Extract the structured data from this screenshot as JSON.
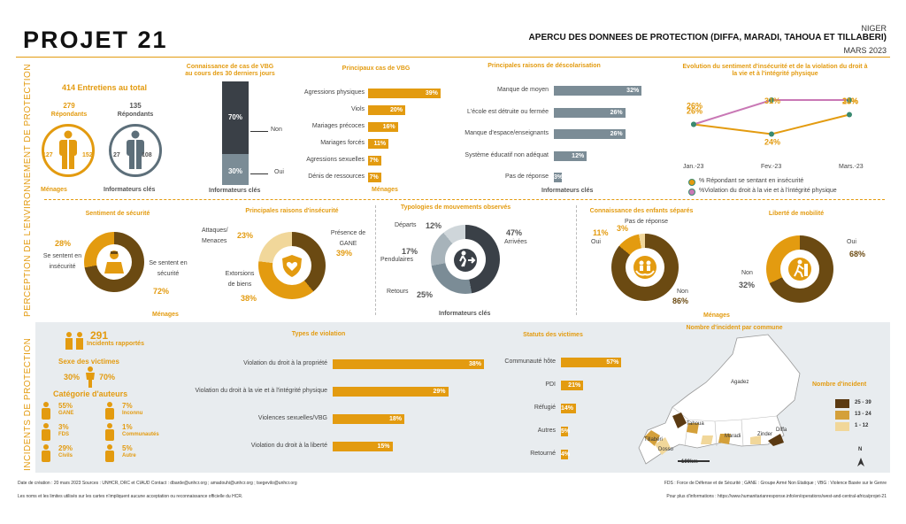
{
  "header": {
    "logo": "PROJET 21",
    "country": "NIGER",
    "title": "APERCU DES DONNEES DE PROTECTION (DIFFA, MARADI, TAHOUA ET TILLABERI)",
    "date": "MARS 2023"
  },
  "side_titles": {
    "top": "PERCEPTION DE L'ENVIRONNEMENT DE PROTECTION",
    "bottom": "INCIDENTS DE PROTECTION"
  },
  "interviews": {
    "total": "414 Entretiens au total",
    "menages_count": "279",
    "menages_label": "Répondants",
    "menages_f": "127",
    "menages_m": "152",
    "menages_caption": "Ménages",
    "ki_count": "135",
    "ki_label": "Répondants",
    "ki_f": "27",
    "ki_m": "108",
    "ki_caption": "Informateurs clés"
  },
  "knowledge_vbg": {
    "title1": "Connaissance de cas de VBG",
    "title2": "au cours des 30 derniers jours",
    "non_pct": "70%",
    "oui_pct": "30%",
    "non": "Non",
    "oui": "Oui",
    "caption": "Informateurs clés",
    "non_value": 70,
    "oui_value": 30
  },
  "vbg_cases": {
    "title": "Principaux cas de VBG",
    "caption": "Ménages",
    "items": [
      {
        "label": "Agressions physiques",
        "pct": "39%",
        "value": 39
      },
      {
        "label": "Viols",
        "pct": "20%",
        "value": 20
      },
      {
        "label": "Mariages précoces",
        "pct": "16%",
        "value": 16
      },
      {
        "label": "Mariages forcés",
        "pct": "11%",
        "value": 11
      },
      {
        "label": "Agressions sexuelles",
        "pct": "7%",
        "value": 7
      },
      {
        "label": "Dénis de ressources",
        "pct": "7%",
        "value": 7
      }
    ]
  },
  "school": {
    "title": "Principales raisons de déscolarisation",
    "caption": "Informateurs clés",
    "items": [
      {
        "label": "Manque de moyen",
        "pct": "32%",
        "value": 32
      },
      {
        "label": "L'école est détruite ou fermée",
        "pct": "26%",
        "value": 26
      },
      {
        "label": "Manque d'espace/enseignants",
        "pct": "26%",
        "value": 26
      },
      {
        "label": "Système éducatif non adéquat",
        "pct": "12%",
        "value": 12
      },
      {
        "label": "Pas de réponse",
        "pct": "3%",
        "value": 3
      }
    ]
  },
  "evolution": {
    "title1": "Evolution du sentiment d'insécurité et de la violation du droit à",
    "title2": "la vie et à l'intégrité physique",
    "legend1": "% Répondant se sentant en insécurité",
    "legend2": "%Violation du droit à la vie et à l'intégrité physique"
  },
  "chart_data": {
    "type": "line",
    "x": [
      "Jan.-23",
      "Fev.-23",
      "Mars.-23"
    ],
    "series": [
      {
        "name": "% Répondant se sentant en insécurité",
        "values": [
          26,
          24,
          28
        ],
        "labels": [
          "26%",
          "24%",
          "28%"
        ],
        "color": "#e39b10"
      },
      {
        "name": "%Violation du droit à la vie et à l'intégrité physique",
        "values": [
          26,
          31,
          31
        ],
        "labels": [
          "26%",
          "31%",
          "31%"
        ],
        "color": "#c978b5"
      }
    ]
  },
  "security": {
    "title": "Sentiment de sécurité",
    "caption": "Ménages",
    "insecure_pct": "28%",
    "insecure_label": "Se sentent en insécurité",
    "secure_pct": "72%",
    "secure_label": "Se sentent en sécurité",
    "secure_value": 72
  },
  "insecurity_reasons": {
    "title": "Principales raisons d'insécurité",
    "attacks_pct": "23%",
    "attacks_label": "Attaques/ Menaces",
    "gane_pct": "39%",
    "gane_label": "Présence de GANE",
    "extortion_pct": "38%",
    "extortion_label": "Extorsions de biens"
  },
  "movements": {
    "title": "Typologies de mouvements observés",
    "caption": "Informateurs clés",
    "departs_pct": "12%",
    "departs": "Départs",
    "arrivees_pct": "47%",
    "arrivees": "Arrivées",
    "pendulaires_pct": "17%",
    "pendulaires": "Pendulaires",
    "retours_pct": "25%",
    "retours": "Retours"
  },
  "children": {
    "title": "Connaissance des enfants séparés",
    "oui_pct": "11%",
    "oui": "Oui",
    "npr_pct": "3%",
    "npr": "Pas de réponse",
    "non_pct": "86%",
    "non": "Non"
  },
  "mobility": {
    "title": "Liberté de mobilité",
    "caption": "Ménages",
    "oui_pct": "68%",
    "oui": "Oui",
    "non_pct": "32%",
    "non": "Non"
  },
  "incidents": {
    "count": "291",
    "label": "Incidents rapportés",
    "sex_title": "Sexe des victimes",
    "female_pct": "30%",
    "male_pct": "70%",
    "authors_title": "Catégorie d'auteurs",
    "authors": [
      {
        "pct": "55%",
        "label": "GANE"
      },
      {
        "pct": "7%",
        "label": "Inconnu"
      },
      {
        "pct": "3%",
        "label": "FDS"
      },
      {
        "pct": "1%",
        "label": "Communautés"
      },
      {
        "pct": "29%",
        "label": "Civils"
      },
      {
        "pct": "5%",
        "label": "Autre"
      }
    ]
  },
  "violations": {
    "title": "Types de violation",
    "items": [
      {
        "label": "Violation du droit à la propriété",
        "pct": "38%",
        "value": 38
      },
      {
        "label": "Violation du droit à la vie et à l'intégrité physique",
        "pct": "29%",
        "value": 29
      },
      {
        "label": "Violences sexuelles/VBG",
        "pct": "18%",
        "value": 18
      },
      {
        "label": "Violation du droit à la liberté",
        "pct": "15%",
        "value": 15
      }
    ]
  },
  "victims": {
    "title": "Statuts des victimes",
    "items": [
      {
        "label": "Communauté hôte",
        "pct": "57%",
        "value": 57
      },
      {
        "label": "PDI",
        "pct": "21%",
        "value": 21
      },
      {
        "label": "Réfugié",
        "pct": "14%",
        "value": 14
      },
      {
        "label": "Autres",
        "pct": "5%",
        "value": 5
      },
      {
        "label": "Retourné",
        "pct": "4%",
        "value": 4
      }
    ]
  },
  "map": {
    "title": "Nombre d'incident par commune",
    "legend_title": "Nombre d'incident",
    "legend": [
      {
        "label": "25 - 39",
        "color": "#5b3a12"
      },
      {
        "label": "13 - 24",
        "color": "#d4a03a"
      },
      {
        "label": "1 - 12",
        "color": "#f1d79a"
      }
    ],
    "regions": [
      "Agadez",
      "Tahoua",
      "Maradi",
      "Tillabéri",
      "Zinder",
      "Diffa",
      "Dosso"
    ],
    "scale": "100km",
    "north": "N"
  },
  "footer": {
    "line1": "Date de création : 20 mars 2023     Sources : UNHCR, DRC et CIAUD     Contact : dbarde@unhcr.org ; amadouhi@unhcr.org ; tsegevilo@unhcr.org",
    "line2": "Les noms et les limites utilisés sur les cartes n'impliquent aucune acceptation ou reconnaissance officielle du HCR.",
    "abbr": "FDS : Force de Défense et de Sécurité ; GANE : Groupe Armé Non Etatique ; VBG : Violence Basée sur le Genre",
    "info": "Pour plus d'informations : https://www.humanitarianresponse.info/en/operations/west-and-central-africa/projet-21"
  }
}
